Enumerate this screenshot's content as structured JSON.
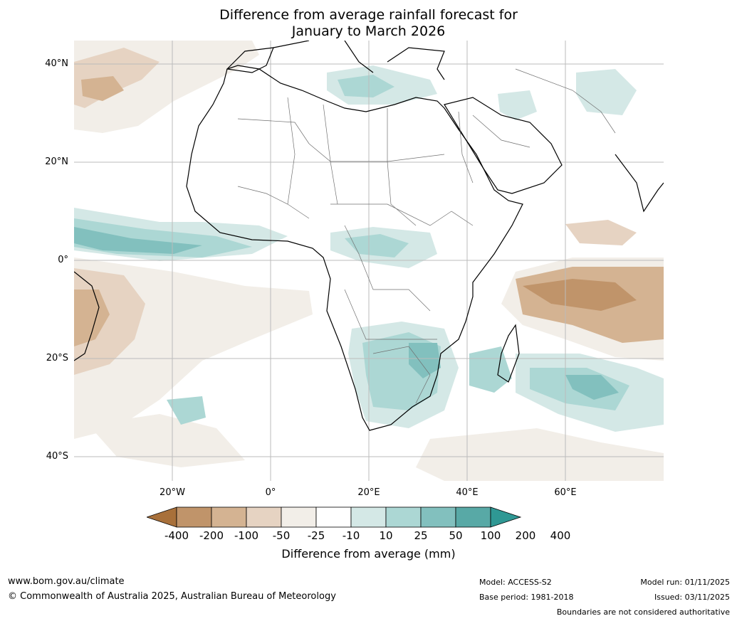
{
  "title_line1": "Difference from average rainfall forecast for",
  "title_line2": "January to March 2026",
  "latitudes": [
    "40°N",
    "20°N",
    "0°",
    "20°S",
    "40°S"
  ],
  "longitudes": [
    "20°W",
    "0°",
    "20°E",
    "40°E",
    "60°E"
  ],
  "colorbar": {
    "ticks": [
      "-400",
      "-200",
      "-100",
      "-50",
      "-25",
      "-10",
      "10",
      "25",
      "50",
      "100",
      "200",
      "400"
    ],
    "colors": [
      "#a8703a",
      "#c0946a",
      "#d4b392",
      "#e6d3c2",
      "#f2eee8",
      "#ffffff",
      "#d4e8e6",
      "#acd7d4",
      "#82c0be",
      "#58a9a6",
      "#2f9894"
    ],
    "label": "Difference from average (mm)"
  },
  "footer": {
    "url": "www.bom.gov.au/climate",
    "copyright": "© Commonwealth of Australia 2025, Australian Bureau of Meteorology",
    "model": "Model: ACCESS-S2",
    "base_period": "Base period: 1981-2018",
    "model_run": "Model run: 01/11/2025",
    "issued": "Issued: 03/11/2025",
    "disclaimer": "Boundaries are not considered authoritative"
  }
}
